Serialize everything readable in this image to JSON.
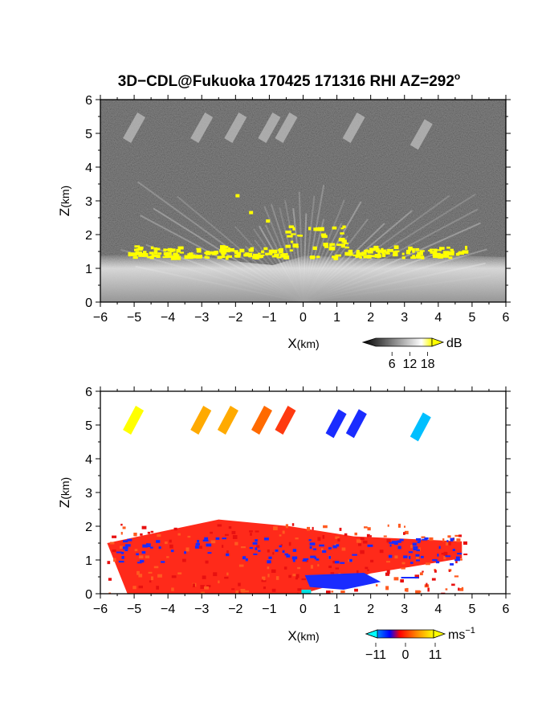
{
  "figure": {
    "title": "3D−CDL@Fukuoka 170425 171316 RHI AZ=292",
    "title_superscript": "o"
  },
  "chart_data": [
    {
      "type": "heatmap",
      "panel": "top",
      "variable": "reflectivity",
      "xlabel_main": "X",
      "xlabel_unit": "(km)",
      "ylabel_main": "Z",
      "ylabel_unit": "(km)",
      "xlim": [
        -6,
        6
      ],
      "ylim": [
        0,
        6
      ],
      "x_ticks": [
        "−6",
        "−5",
        "−4",
        "−3",
        "−2",
        "−1",
        "0",
        "1",
        "2",
        "3",
        "4",
        "5",
        "6"
      ],
      "y_ticks": [
        "0",
        "1",
        "2",
        "3",
        "4",
        "5",
        "6"
      ],
      "colorbar": {
        "unit": "dB",
        "ticks": [
          "6",
          "12",
          "18"
        ],
        "range": [
          0,
          20
        ],
        "colors": [
          "#000000",
          "#ffffff",
          "#ffff00"
        ]
      },
      "features": {
        "yellow_layer_km": {
          "xmin": -5.2,
          "xmax": 4.9,
          "zmin": 1.2,
          "zmax": 2.3
        },
        "bright_base_km": {
          "zmin": 0,
          "zmax": 1.5
        },
        "upper_streaks_km": [
          {
            "x": -5.0,
            "z": 5.0
          },
          {
            "x": -3.0,
            "z": 5.0
          },
          {
            "x": -2.0,
            "z": 5.0
          },
          {
            "x": -1.0,
            "z": 5.0
          },
          {
            "x": -0.5,
            "z": 5.0
          },
          {
            "x": 1.5,
            "z": 5.0
          },
          {
            "x": 3.5,
            "z": 4.8
          }
        ]
      }
    },
    {
      "type": "heatmap",
      "panel": "bottom",
      "variable": "doppler_velocity",
      "xlabel_main": "X",
      "xlabel_unit": "(km)",
      "ylabel_main": "Z",
      "ylabel_unit": "(km)",
      "xlim": [
        -6,
        6
      ],
      "ylim": [
        0,
        6
      ],
      "x_ticks": [
        "−6",
        "−5",
        "−4",
        "−3",
        "−2",
        "−1",
        "0",
        "1",
        "2",
        "3",
        "4",
        "5",
        "6"
      ],
      "y_ticks": [
        "0",
        "1",
        "2",
        "3",
        "4",
        "5",
        "6"
      ],
      "colorbar": {
        "unit": "ms",
        "unit_exponent": "−1",
        "ticks": [
          "−11",
          "0",
          "11"
        ],
        "range": [
          -11,
          11
        ],
        "colors": [
          "#00ffff",
          "#0000ff",
          "#ff0000",
          "#ffff00"
        ]
      },
      "features": {
        "upper_streaks_km": [
          {
            "x": -5.0,
            "z": 5.0,
            "velocity": 10
          },
          {
            "x": -3.0,
            "z": 5.0,
            "velocity": 8
          },
          {
            "x": -2.2,
            "z": 5.0,
            "velocity": 7
          },
          {
            "x": -1.2,
            "z": 5.0,
            "velocity": 5
          },
          {
            "x": -0.5,
            "z": 5.0,
            "velocity": 4
          },
          {
            "x": 1.0,
            "z": 4.9,
            "velocity": -8
          },
          {
            "x": 1.6,
            "z": 4.9,
            "velocity": -8
          },
          {
            "x": 3.5,
            "z": 4.8,
            "velocity": -10
          }
        ],
        "positive_layer_km": {
          "xmin": -5.8,
          "xmax": 4.8,
          "zmin": 0,
          "zmax": 2.3
        },
        "negative_region_km": {
          "xmin": 0.0,
          "xmax": 2.3,
          "zmin": 0.1,
          "zmax": 0.6
        }
      }
    }
  ]
}
